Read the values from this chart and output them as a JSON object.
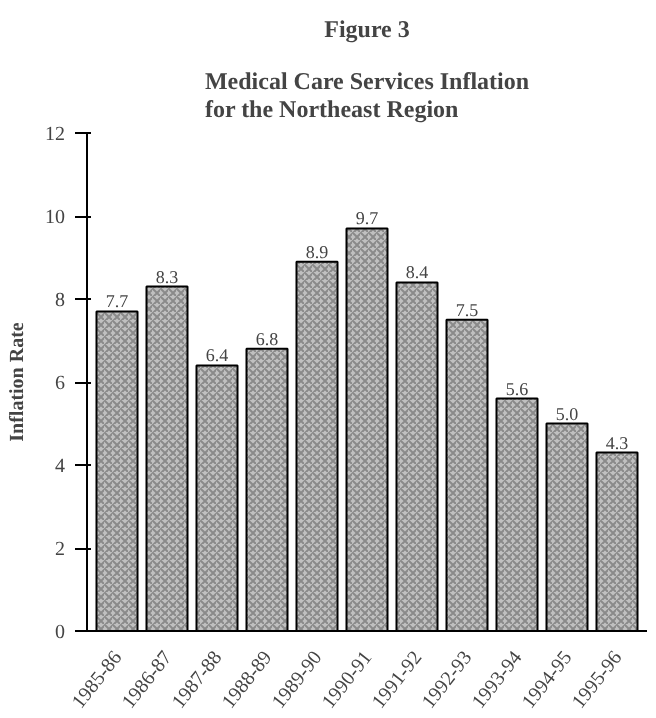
{
  "chart_data": {
    "type": "bar",
    "title": "Figure 3",
    "subtitle": "Medical Care Services Inflation\nfor the Northeast Region",
    "ylabel": "Inflation Rate",
    "categories": [
      "1985-86",
      "1986-87",
      "1987-88",
      "1988-89",
      "1989-90",
      "1990-91",
      "1991-92",
      "1992-93",
      "1993-94",
      "1994-95",
      "1995-96"
    ],
    "values": [
      7.7,
      8.3,
      6.4,
      6.8,
      8.9,
      9.7,
      8.4,
      7.5,
      5.6,
      5.0,
      4.3
    ],
    "value_labels": [
      "7.7",
      "8.3",
      "6.4",
      "6.8",
      "8.9",
      "9.7",
      "8.4",
      "7.5",
      "5.6",
      "5.0",
      "4.3"
    ],
    "color": "#c0c0c0",
    "ylim": [
      0,
      12
    ],
    "yticks": [
      0,
      2,
      4,
      6,
      8,
      10,
      12
    ],
    "grid": false
  }
}
